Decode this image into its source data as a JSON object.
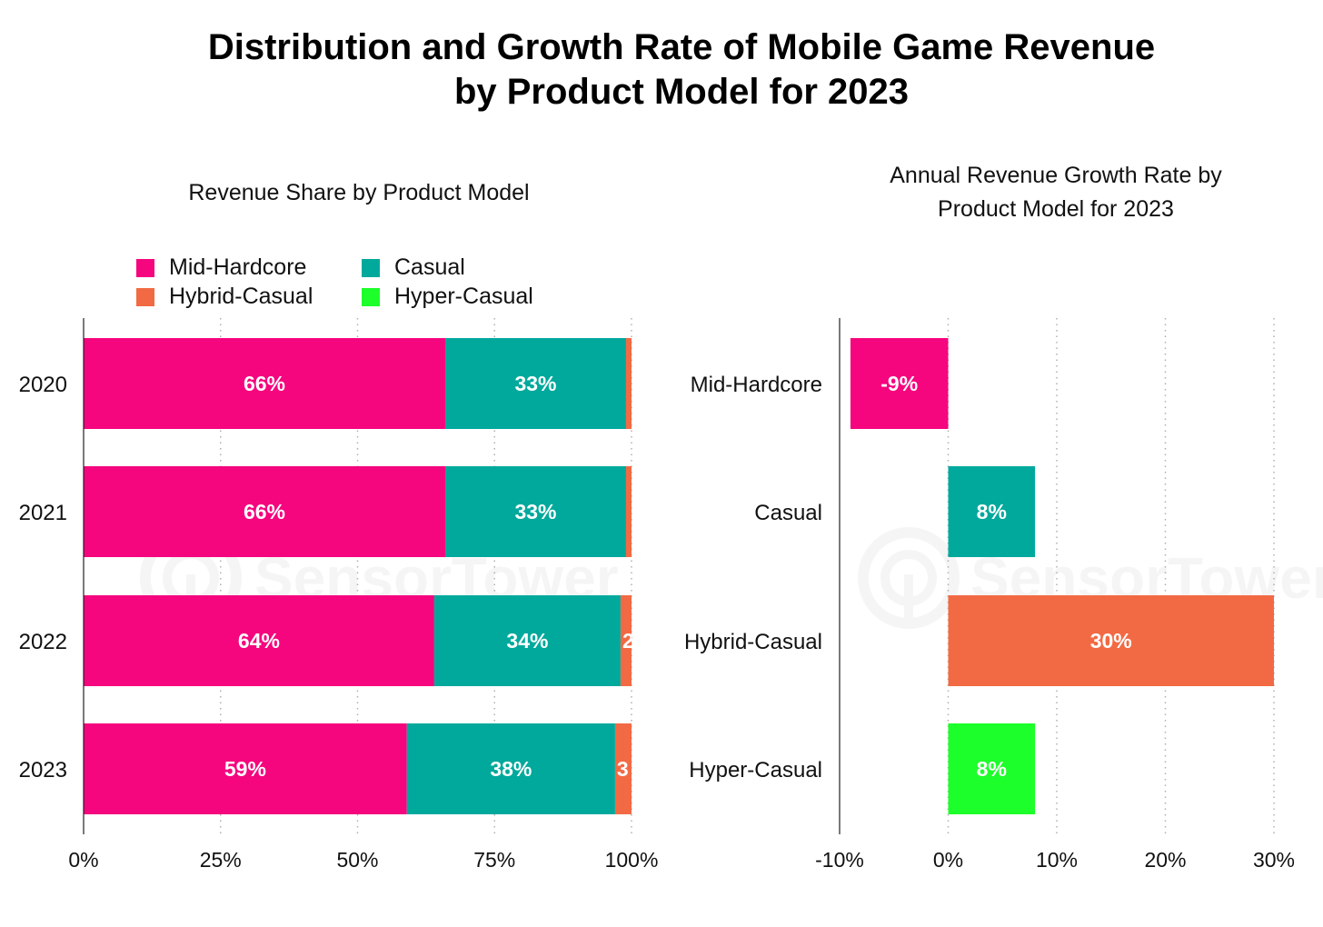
{
  "title": {
    "line1": "Distribution and Growth Rate of Mobile Game Revenue",
    "line2": "by Product Model for 2023"
  },
  "watermark": "SensorTower",
  "colors": {
    "Mid-Hardcore": "#f5057e",
    "Casual": "#00a99c",
    "Hybrid-Casual": "#f26a44",
    "Hyper-Casual": "#1dff2a"
  },
  "chart_data": [
    {
      "type": "bar",
      "orientation": "horizontal",
      "stacked": true,
      "title": "Revenue Share by Product Model",
      "categories": [
        "2020",
        "2021",
        "2022",
        "2023"
      ],
      "series": [
        {
          "name": "Mid-Hardcore",
          "values": [
            66,
            66,
            64,
            59
          ],
          "labels": [
            "66%",
            "66%",
            "64%",
            "59%"
          ]
        },
        {
          "name": "Casual",
          "values": [
            33,
            33,
            34,
            38
          ],
          "labels": [
            "33%",
            "33%",
            "34%",
            "38%"
          ]
        },
        {
          "name": "Hybrid-Casual",
          "values": [
            1,
            1,
            2,
            3
          ],
          "labels": [
            "",
            "",
            "2",
            "3"
          ]
        },
        {
          "name": "Hyper-Casual",
          "values": [
            0,
            0,
            0,
            0
          ],
          "labels": [
            "",
            "",
            "",
            ""
          ]
        }
      ],
      "legend": {
        "position": "top-left",
        "entries": [
          "Mid-Hardcore",
          "Casual",
          "Hybrid-Casual",
          "Hyper-Casual"
        ]
      },
      "xlabel": "",
      "ylabel": "",
      "xlim": [
        0,
        100
      ],
      "xticks": [
        0,
        25,
        50,
        75,
        100
      ],
      "xtick_labels": [
        "0%",
        "25%",
        "50%",
        "75%",
        "100%"
      ],
      "grid": "vertical dotted"
    },
    {
      "type": "bar",
      "orientation": "horizontal",
      "title": "Annual Revenue Growth Rate by Product Model for 2023",
      "title_lines": [
        "Annual Revenue Growth Rate by",
        "Product Model for 2023"
      ],
      "categories": [
        "Mid-Hardcore",
        "Casual",
        "Hybrid-Casual",
        "Hyper-Casual"
      ],
      "values": [
        -9,
        8,
        30,
        8
      ],
      "labels": [
        "-9%",
        "8%",
        "30%",
        "8%"
      ],
      "xlabel": "",
      "ylabel": "",
      "xlim": [
        -10,
        30
      ],
      "xticks": [
        -10,
        0,
        10,
        20,
        30
      ],
      "xtick_labels": [
        "-10%",
        "0%",
        "10%",
        "20%",
        "30%"
      ],
      "grid": "vertical dotted"
    }
  ]
}
